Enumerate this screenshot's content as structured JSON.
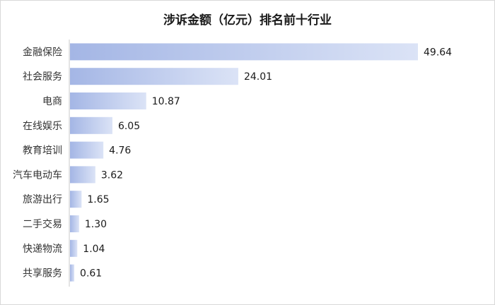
{
  "chart_data": {
    "type": "bar",
    "orientation": "horizontal",
    "title": "涉诉金额（亿元）排名前十行业",
    "categories": [
      "金融保险",
      "社会服务",
      "电商",
      "在线娱乐",
      "教育培训",
      "汽车电动车",
      "旅游出行",
      "二手交易",
      "快递物流",
      "共享服务"
    ],
    "values": [
      49.64,
      24.01,
      10.87,
      6.05,
      4.76,
      3.62,
      1.65,
      1.3,
      1.04,
      0.61
    ],
    "value_labels": [
      "49.64",
      "24.01",
      "10.87",
      "6.05",
      "4.76",
      "3.62",
      "1.65",
      "1.30",
      "1.04",
      "0.61"
    ],
    "xlabel": "",
    "ylabel": "",
    "xlim": [
      0,
      49.64
    ],
    "grid": false,
    "legend": "none",
    "colors": {
      "bar_start": "#a4b6e5",
      "bar_end": "#dbe3f6",
      "axis": "#c8c8c8"
    }
  }
}
